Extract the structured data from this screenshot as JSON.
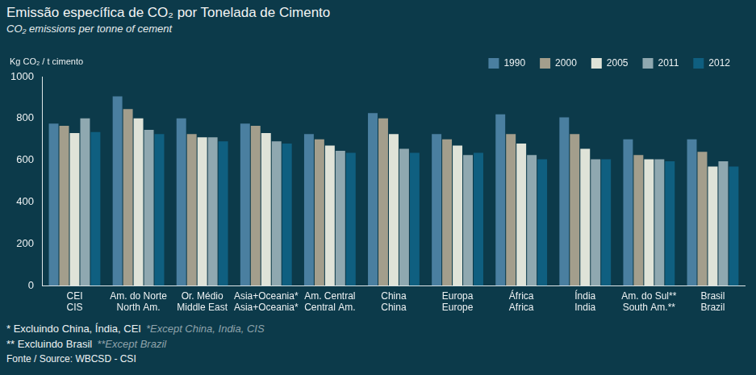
{
  "chart_data": {
    "type": "bar",
    "title": "Emissão específica de CO₂ por Tonelada de Cimento",
    "subtitle": "CO₂ emissions per tonne of cement",
    "y_label": "Kg CO₂ / t cimento",
    "categories": [
      "CEI",
      "Am. do Norte",
      "Or. Médio",
      "Asia+Oceania*",
      "Am. Central",
      "China",
      "Europa",
      "África",
      "Índia",
      "Am. do Sul**",
      "Brasil"
    ],
    "categories_en": [
      "CIS",
      "North Am.",
      "Middle East",
      "Asia+Oceania*",
      "Central Am.",
      "China",
      "Europe",
      "Africa",
      "India",
      "South Am.**",
      "Brazil"
    ],
    "series": [
      {
        "name": "1990",
        "color": "#4a7fa0",
        "values": [
          775,
          905,
          800,
          775,
          725,
          825,
          725,
          820,
          805,
          700,
          700
        ]
      },
      {
        "name": "2000",
        "color": "#a39e8c",
        "values": [
          765,
          845,
          725,
          765,
          700,
          800,
          700,
          725,
          725,
          625,
          640
        ]
      },
      {
        "name": "2005",
        "color": "#dfe3d8",
        "values": [
          730,
          800,
          710,
          730,
          670,
          725,
          670,
          680,
          655,
          605,
          570
        ]
      },
      {
        "name": "2011",
        "color": "#8fa8b0",
        "values": [
          800,
          745,
          710,
          690,
          645,
          655,
          625,
          625,
          605,
          605,
          595
        ]
      },
      {
        "name": "2012",
        "color": "#0f5f80",
        "values": [
          735,
          725,
          690,
          680,
          635,
          635,
          635,
          605,
          605,
          595,
          570
        ]
      }
    ],
    "ylim": [
      0,
      1000
    ],
    "yticks": [
      0,
      200,
      400,
      600,
      800,
      1000
    ],
    "grid": false,
    "legend": "top-right",
    "footnotes": [
      {
        "text": "* Excluindo China, Índia, CEI",
        "text_en": "*Except China, India, CIS"
      },
      {
        "text": "** Excluindo Brasil",
        "text_en": "**Except Brazil"
      }
    ],
    "source": "Fonte / Source: WBCSD - CSI"
  }
}
